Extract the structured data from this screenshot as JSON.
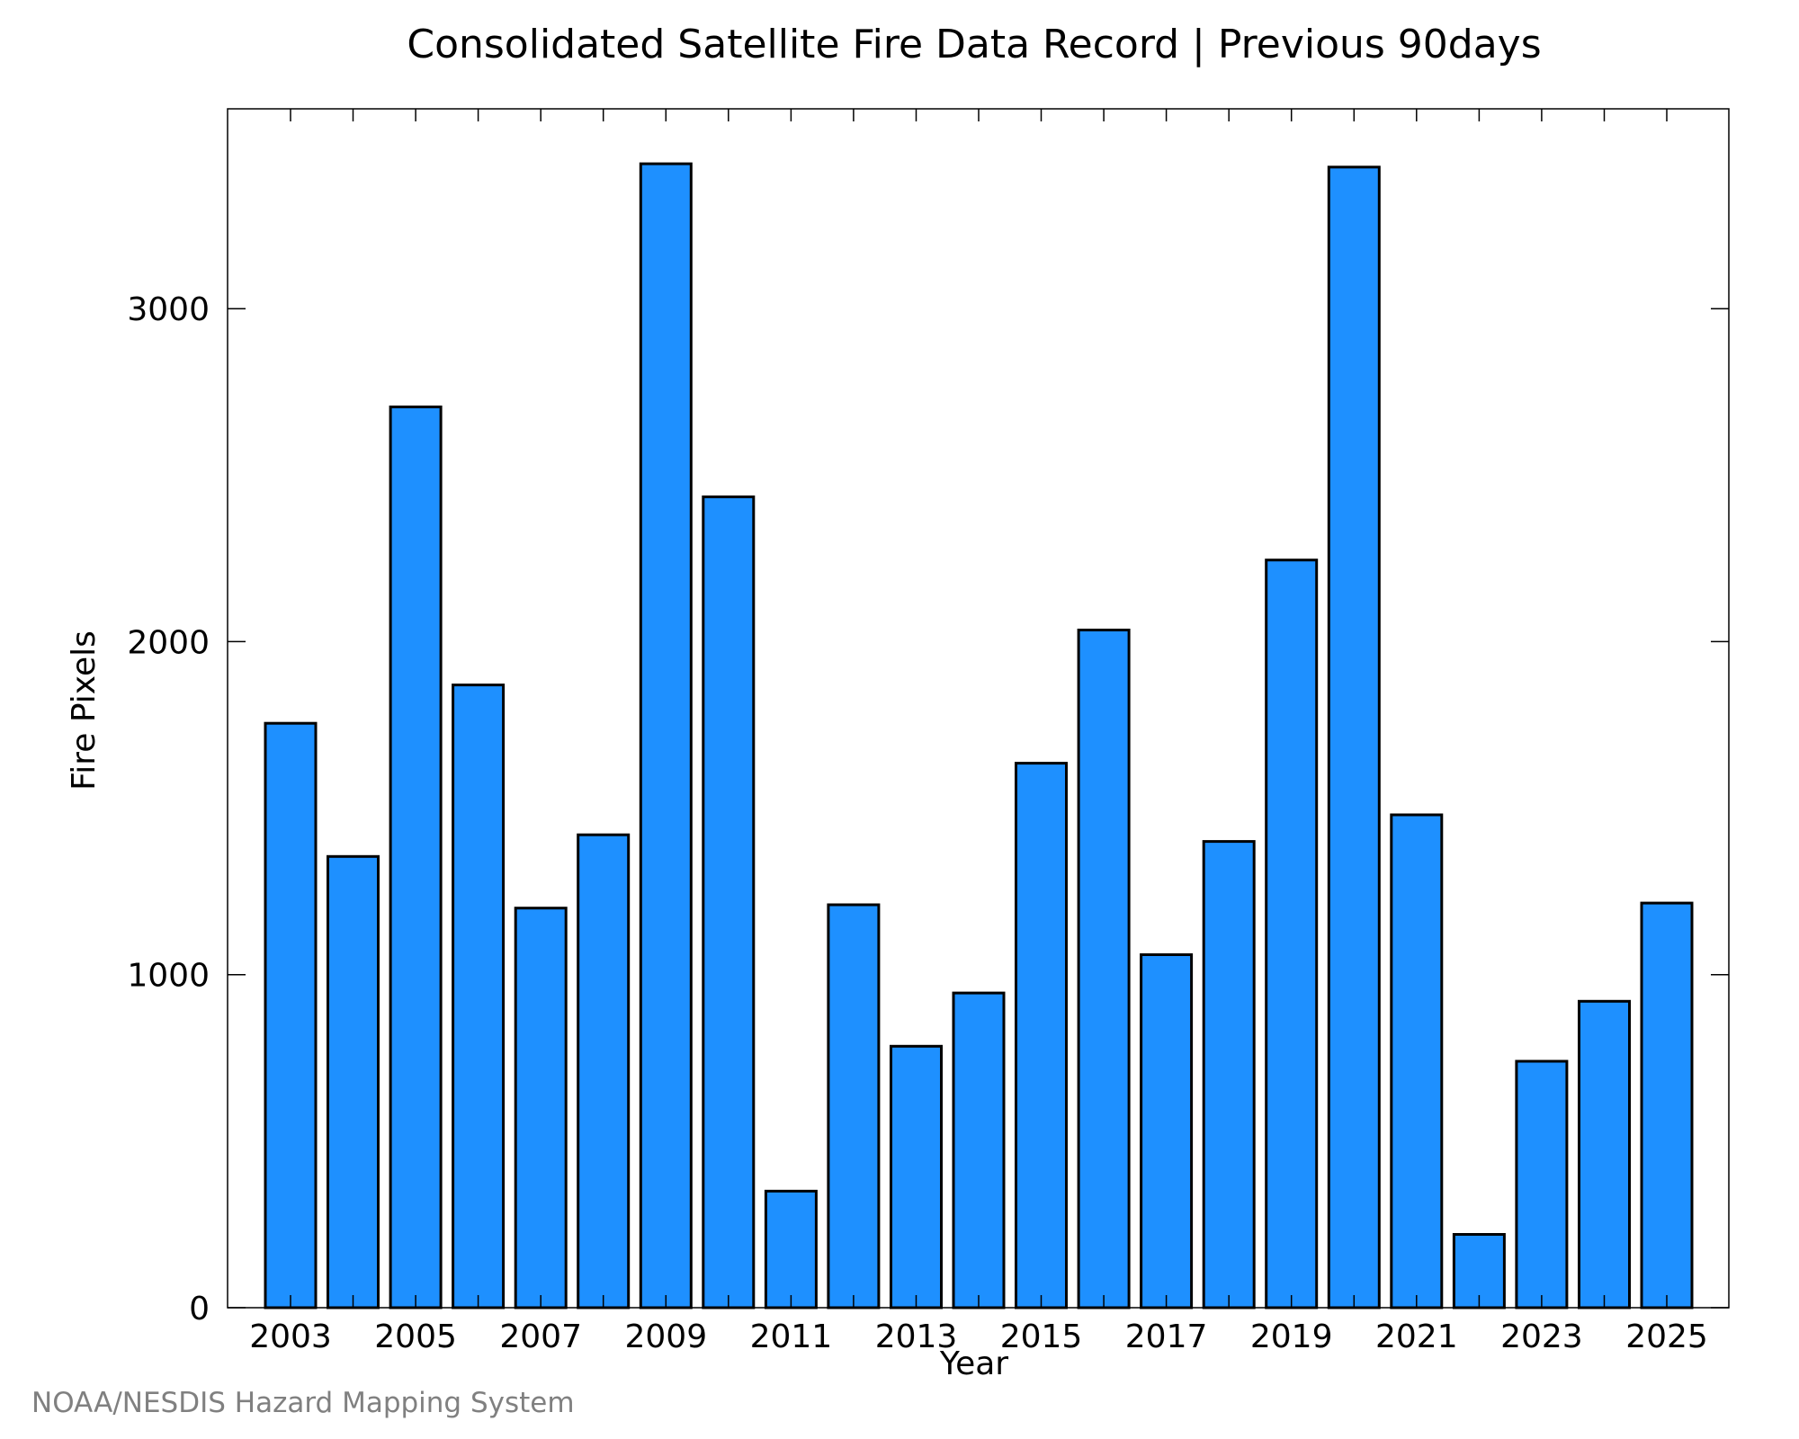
{
  "chart_data": {
    "type": "bar",
    "title": "Consolidated Satellite Fire Data Record | Previous 90days",
    "xlabel": "Year",
    "ylabel": "Fire Pixels",
    "categories": [
      "2003",
      "2004",
      "2005",
      "2006",
      "2007",
      "2008",
      "2009",
      "2010",
      "2011",
      "2012",
      "2013",
      "2014",
      "2015",
      "2016",
      "2017",
      "2018",
      "2019",
      "2020",
      "2021",
      "2022",
      "2023",
      "2024",
      "2025"
    ],
    "values": [
      1755,
      1355,
      2705,
      1870,
      1200,
      1420,
      3435,
      2435,
      350,
      1210,
      785,
      945,
      1635,
      2035,
      1060,
      1400,
      2245,
      3425,
      1480,
      220,
      740,
      920,
      1215
    ],
    "ylim": [
      0,
      3600
    ],
    "yticks": [
      0,
      1000,
      2000,
      3000
    ],
    "xtick_labels": [
      "2003",
      "2005",
      "2007",
      "2009",
      "2011",
      "2013",
      "2015",
      "2017",
      "2019",
      "2021",
      "2023",
      "2025"
    ],
    "grid": false,
    "bar_color": "#1e90ff",
    "edge_color": "#000000"
  },
  "footer": {
    "credit": "NOAA/NESDIS Hazard Mapping System"
  }
}
